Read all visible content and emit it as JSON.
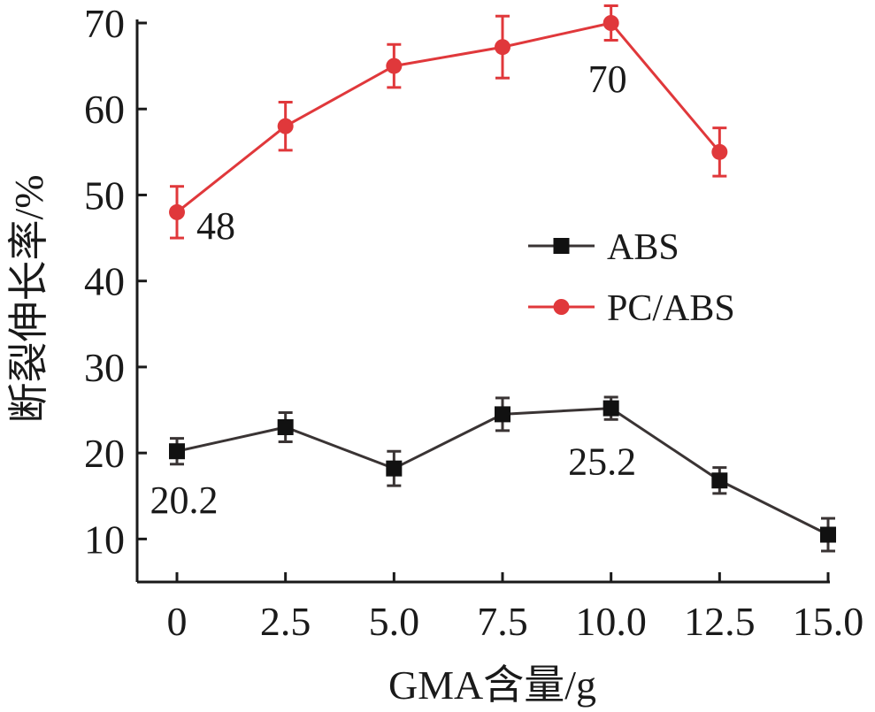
{
  "chart_data": {
    "type": "line",
    "title": "",
    "xlabel": "GMA含量/g",
    "ylabel": "断裂伸长率/%",
    "x": [
      0,
      2.5,
      5.0,
      7.5,
      10.0,
      12.5,
      15.0
    ],
    "x_tick_labels": [
      "0",
      "2.5",
      "5.0",
      "7.5",
      "10.0",
      "12.5",
      "15.0"
    ],
    "y_ticks": [
      10,
      20,
      30,
      40,
      50,
      60,
      70
    ],
    "y_tick_labels": [
      "10",
      "20",
      "30",
      "40",
      "50",
      "60",
      "70"
    ],
    "xlim": [
      -0.5,
      15.0
    ],
    "ylim": [
      5,
      70
    ],
    "grid": false,
    "legend_position": "center-right",
    "series": [
      {
        "name": "ABS",
        "color": "#3a3434",
        "marker": "square",
        "x": [
          0,
          2.5,
          5.0,
          7.5,
          10.0,
          12.5,
          15.0
        ],
        "values": [
          20.2,
          23.0,
          18.2,
          24.5,
          25.2,
          16.8,
          10.5
        ],
        "errors": [
          1.5,
          1.7,
          2.0,
          1.9,
          1.3,
          1.5,
          1.9
        ]
      },
      {
        "name": "PC/ABS",
        "color": "#e0383b",
        "marker": "circle",
        "x": [
          0,
          2.5,
          5.0,
          7.5,
          10.0,
          12.5
        ],
        "values": [
          48,
          58,
          65,
          67.2,
          70,
          55
        ],
        "errors": [
          3.0,
          2.8,
          2.5,
          3.6,
          2.0,
          2.8
        ]
      }
    ],
    "annotations": [
      {
        "text": "48",
        "x": 0,
        "y": 48,
        "series": "PC/ABS"
      },
      {
        "text": "70",
        "x": 10.0,
        "y": 70,
        "series": "PC/ABS"
      },
      {
        "text": "20.2",
        "x": 0,
        "y": 20.2,
        "series": "ABS"
      },
      {
        "text": "25.2",
        "x": 10.0,
        "y": 25.2,
        "series": "ABS"
      }
    ]
  }
}
